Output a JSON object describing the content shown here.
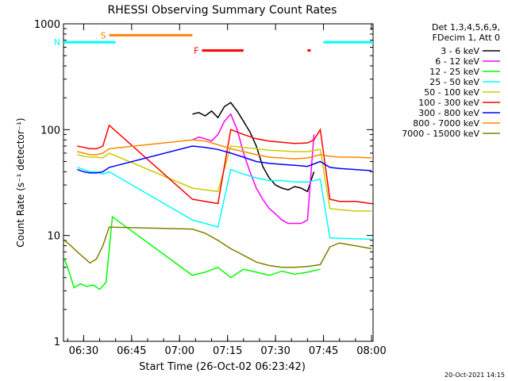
{
  "chart_data": {
    "type": "line",
    "title": "RHESSI Observing Summary Count Rates",
    "xlabel": "Start Time (26-Oct-02 06:23:42)",
    "ylabel": "Count Rate (s⁻¹ detector⁻¹)",
    "yscale": "log",
    "xlim": [
      "06:23:42",
      "08:00:30"
    ],
    "ylim": [
      1,
      1000
    ],
    "x_ticks": [
      "06:30",
      "06:45",
      "07:00",
      "07:15",
      "07:30",
      "07:45",
      "08:00"
    ],
    "y_ticks": [
      "1",
      "10",
      "100",
      "1000"
    ],
    "legend_header": [
      "Det 1,3,4,5,6,9,",
      "FDecim 1, Att 0"
    ],
    "legend_position": "right",
    "footer": "20-Oct-2021 14:15",
    "series": [
      {
        "name": "3 - 6 keV",
        "color": "#000000",
        "x": [
          "07:04",
          "07:06",
          "07:08",
          "07:10",
          "07:12",
          "07:14",
          "07:16",
          "07:18",
          "07:20",
          "07:22",
          "07:24",
          "07:26",
          "07:28",
          "07:30",
          "07:32",
          "07:34",
          "07:36",
          "07:38",
          "07:40",
          "07:42"
        ],
        "y": [
          140,
          145,
          135,
          150,
          130,
          165,
          180,
          150,
          120,
          95,
          70,
          45,
          35,
          30,
          28,
          27,
          29,
          28,
          26,
          40
        ]
      },
      {
        "name": "6 - 12 keV",
        "color": "#ff00ff",
        "x": [
          "07:04",
          "07:06",
          "07:08",
          "07:10",
          "07:12",
          "07:14",
          "07:16",
          "07:18",
          "07:20",
          "07:22",
          "07:24",
          "07:26",
          "07:28",
          "07:30",
          "07:32",
          "07:34",
          "07:36",
          "07:38",
          "07:40",
          "07:42"
        ],
        "y": [
          80,
          85,
          82,
          78,
          90,
          120,
          140,
          100,
          60,
          40,
          28,
          22,
          18,
          16,
          14,
          13,
          13,
          13,
          14,
          90
        ]
      },
      {
        "name": "12 - 25 keV",
        "color": "#00ff00",
        "x": [
          "06:24",
          "06:25",
          "06:27",
          "06:29",
          "06:31",
          "06:33",
          "06:35",
          "06:37",
          "06:39",
          "07:04",
          "07:08",
          "07:12",
          "07:16",
          "07:20",
          "07:24",
          "07:28",
          "07:32",
          "07:36",
          "07:40",
          "07:44"
        ],
        "y": [
          6,
          5,
          3.2,
          3.5,
          3.3,
          3.4,
          3.1,
          3.6,
          15,
          4.2,
          4.5,
          5,
          4,
          4.8,
          4.5,
          4.2,
          4.6,
          4.3,
          4.5,
          4.8
        ]
      },
      {
        "name": "25 - 50 keV",
        "color": "#00ffff",
        "x": [
          "06:28",
          "06:30",
          "06:32",
          "06:34",
          "06:36",
          "06:38",
          "07:04",
          "07:08",
          "07:12",
          "07:16",
          "07:20",
          "07:24",
          "07:28",
          "07:32",
          "07:36",
          "07:40",
          "07:44",
          "07:47",
          "07:50",
          "07:55",
          "08:00"
        ],
        "y": [
          44,
          42,
          40,
          40,
          38,
          40,
          14,
          13,
          12,
          42,
          38,
          35,
          33,
          33,
          32,
          32,
          34,
          9.5,
          9.4,
          9.3,
          9.2
        ]
      },
      {
        "name": "50 - 100 keV",
        "color": "#cccc00",
        "x": [
          "06:28",
          "06:30",
          "06:32",
          "06:34",
          "06:36",
          "06:38",
          "07:04",
          "07:08",
          "07:12",
          "07:16",
          "07:20",
          "07:24",
          "07:28",
          "07:32",
          "07:36",
          "07:40",
          "07:44",
          "07:47",
          "07:50",
          "07:55",
          "08:00"
        ],
        "y": [
          58,
          56,
          55,
          55,
          54,
          60,
          28,
          27,
          26,
          70,
          68,
          66,
          64,
          63,
          62,
          62,
          65,
          18,
          17.5,
          17,
          17
        ]
      },
      {
        "name": "100 - 300 keV",
        "color": "#ff0000",
        "x": [
          "06:28",
          "06:30",
          "06:32",
          "06:34",
          "06:36",
          "06:38",
          "07:04",
          "07:08",
          "07:12",
          "07:16",
          "07:20",
          "07:24",
          "07:28",
          "07:32",
          "07:36",
          "07:40",
          "07:42",
          "07:44",
          "07:47",
          "07:50",
          "07:55",
          "08:00"
        ],
        "y": [
          70,
          68,
          66,
          66,
          70,
          110,
          22,
          21,
          20,
          100,
          90,
          82,
          78,
          76,
          74,
          75,
          80,
          100,
          22,
          21,
          21,
          20
        ]
      },
      {
        "name": "300 - 800 keV",
        "color": "#0000ff",
        "x": [
          "06:28",
          "06:30",
          "06:32",
          "06:34",
          "06:36",
          "06:38",
          "07:04",
          "07:08",
          "07:12",
          "07:16",
          "07:20",
          "07:24",
          "07:28",
          "07:32",
          "07:36",
          "07:40",
          "07:44",
          "07:47",
          "07:50",
          "07:55",
          "08:00"
        ],
        "y": [
          42,
          40,
          39,
          39,
          40,
          44,
          70,
          68,
          65,
          60,
          55,
          50,
          48,
          47,
          46,
          45,
          50,
          44,
          43,
          42,
          41
        ]
      },
      {
        "name": "800 - 7000 keV",
        "color": "#ff8800",
        "x": [
          "06:28",
          "06:30",
          "06:32",
          "06:34",
          "06:36",
          "06:38",
          "07:04",
          "07:08",
          "07:12",
          "07:16",
          "07:20",
          "07:24",
          "07:28",
          "07:32",
          "07:36",
          "07:40",
          "07:44",
          "07:47",
          "07:50",
          "07:55",
          "08:00"
        ],
        "y": [
          62,
          60,
          58,
          58,
          60,
          66,
          80,
          78,
          72,
          66,
          62,
          58,
          55,
          54,
          53,
          54,
          58,
          56,
          55,
          55,
          54
        ]
      },
      {
        "name": "7000 - 15000 keV",
        "color": "#808000",
        "x": [
          "06:24",
          "06:26",
          "06:28",
          "06:30",
          "06:32",
          "06:34",
          "06:36",
          "06:38",
          "07:04",
          "07:08",
          "07:12",
          "07:16",
          "07:20",
          "07:24",
          "07:28",
          "07:32",
          "07:36",
          "07:40",
          "07:44",
          "07:47",
          "07:50",
          "07:55",
          "08:00"
        ],
        "y": [
          9,
          8,
          7,
          6.2,
          5.5,
          6,
          8,
          12,
          11.5,
          10.5,
          9,
          7.5,
          6.5,
          5.6,
          5.2,
          5,
          5,
          5.1,
          5.3,
          7.8,
          8.5,
          8,
          7.5
        ]
      }
    ],
    "flags": [
      {
        "label": "S",
        "color": "#ff8800",
        "start": "06:38",
        "end": "07:04",
        "y": 780
      },
      {
        "label": "N",
        "color": "#00ffff",
        "start": "06:23:42",
        "end": "06:40",
        "y": 670
      },
      {
        "label": "",
        "color": "#00ffff",
        "start": "07:45",
        "end": "08:00:30",
        "y": 670
      },
      {
        "label": "F",
        "color": "#ff0000",
        "start": "07:07",
        "end": "07:20",
        "y": 560
      },
      {
        "label": "",
        "color": "#ff0000",
        "start": "07:40",
        "end": "07:41",
        "y": 560
      }
    ]
  }
}
